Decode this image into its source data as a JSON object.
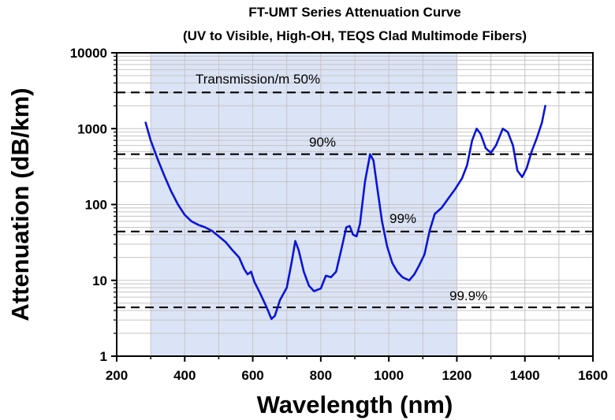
{
  "chart_data": {
    "type": "line",
    "title": "FT-UMT Series Attenuation Curve",
    "subtitle": "(UV to Visible, High-OH, TEQS Clad Multimode Fibers)",
    "xlabel": "Wavelength (nm)",
    "ylabel": "Attenuation (dB/km)",
    "xlim": [
      200,
      1600
    ],
    "ylim": [
      1,
      10000
    ],
    "yscale": "log",
    "x_ticks": [
      "200",
      "400",
      "600",
      "800",
      "1000",
      "1200",
      "1400",
      "1600"
    ],
    "y_ticks": [
      "1",
      "10",
      "100",
      "1000",
      "10000"
    ],
    "grid": true,
    "shaded_band": [
      300,
      1200
    ],
    "series": [
      {
        "color": "#0a14dc",
        "points": [
          [
            285,
            1200
          ],
          [
            300,
            700
          ],
          [
            320,
            400
          ],
          [
            340,
            240
          ],
          [
            360,
            150
          ],
          [
            380,
            100
          ],
          [
            400,
            73
          ],
          [
            420,
            60
          ],
          [
            440,
            54
          ],
          [
            460,
            50
          ],
          [
            480,
            45
          ],
          [
            500,
            38
          ],
          [
            520,
            32
          ],
          [
            540,
            25
          ],
          [
            560,
            20
          ],
          [
            575,
            14
          ],
          [
            585,
            12
          ],
          [
            595,
            13
          ],
          [
            605,
            9.5
          ],
          [
            620,
            7
          ],
          [
            640,
            4.5
          ],
          [
            655,
            3.1
          ],
          [
            665,
            3.4
          ],
          [
            680,
            5.5
          ],
          [
            700,
            8
          ],
          [
            715,
            18
          ],
          [
            725,
            33
          ],
          [
            735,
            25
          ],
          [
            750,
            13
          ],
          [
            765,
            8.5
          ],
          [
            780,
            7.2
          ],
          [
            800,
            7.8
          ],
          [
            815,
            11.5
          ],
          [
            830,
            11
          ],
          [
            845,
            13
          ],
          [
            860,
            25
          ],
          [
            875,
            50
          ],
          [
            885,
            52
          ],
          [
            895,
            40
          ],
          [
            905,
            38
          ],
          [
            915,
            55
          ],
          [
            930,
            200
          ],
          [
            945,
            460
          ],
          [
            955,
            380
          ],
          [
            965,
            180
          ],
          [
            980,
            60
          ],
          [
            995,
            28
          ],
          [
            1010,
            17
          ],
          [
            1025,
            13
          ],
          [
            1040,
            11
          ],
          [
            1060,
            10
          ],
          [
            1075,
            12
          ],
          [
            1090,
            16
          ],
          [
            1105,
            22
          ],
          [
            1120,
            45
          ],
          [
            1135,
            75
          ],
          [
            1155,
            90
          ],
          [
            1175,
            120
          ],
          [
            1195,
            160
          ],
          [
            1215,
            220
          ],
          [
            1230,
            330
          ],
          [
            1245,
            700
          ],
          [
            1258,
            1000
          ],
          [
            1270,
            850
          ],
          [
            1285,
            550
          ],
          [
            1300,
            480
          ],
          [
            1315,
            600
          ],
          [
            1335,
            1000
          ],
          [
            1350,
            900
          ],
          [
            1365,
            600
          ],
          [
            1378,
            280
          ],
          [
            1392,
            230
          ],
          [
            1405,
            300
          ],
          [
            1420,
            500
          ],
          [
            1435,
            750
          ],
          [
            1450,
            1200
          ],
          [
            1460,
            2000
          ]
        ]
      }
    ],
    "reference_lines": [
      {
        "label": "Transmission/m 50%",
        "value": 3000
      },
      {
        "label": "90%",
        "value": 460
      },
      {
        "label": "99%",
        "value": 44
      },
      {
        "label": "99.9%",
        "value": 4.4
      }
    ]
  }
}
